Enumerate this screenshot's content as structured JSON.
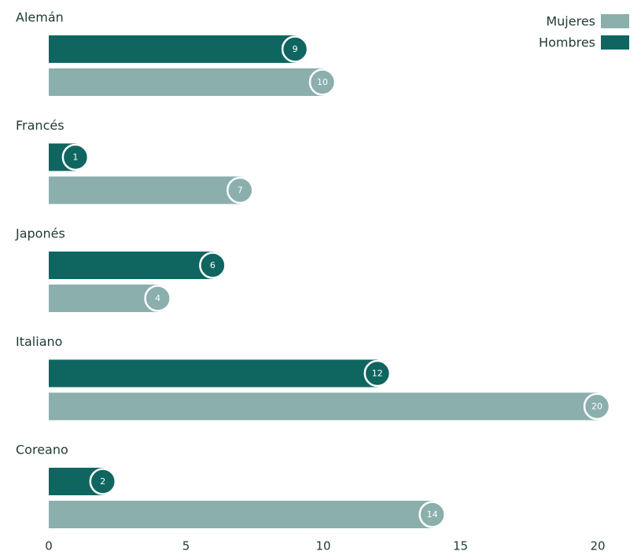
{
  "chart_data": {
    "type": "bar",
    "orientation": "horizontal",
    "categories": [
      "Alemán",
      "Francés",
      "Japonés",
      "Italiano",
      "Coreano"
    ],
    "series": [
      {
        "name": "Hombres",
        "values": [
          9,
          1,
          6,
          12,
          2
        ],
        "color": "#0f6660"
      },
      {
        "name": "Mujeres",
        "values": [
          10,
          7,
          4,
          20,
          14
        ],
        "color": "#8aafad"
      }
    ],
    "xlim": [
      0,
      20
    ],
    "xticks": [
      0,
      5,
      10,
      15,
      20
    ],
    "grid": false,
    "legend": {
      "position": "top-right",
      "order": [
        "Mujeres",
        "Hombres"
      ]
    }
  }
}
